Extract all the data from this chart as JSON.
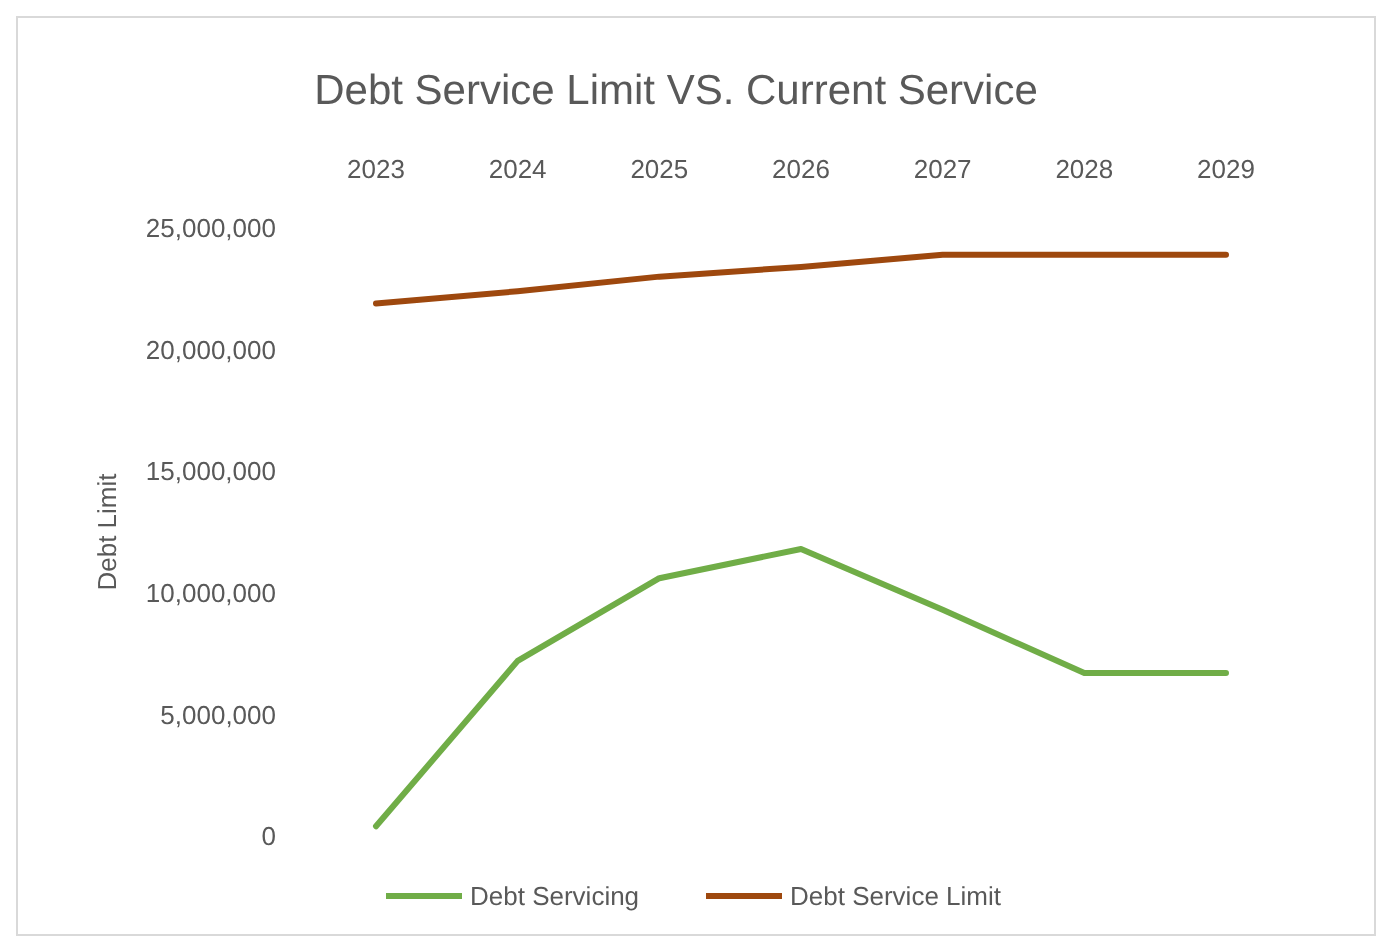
{
  "chart_data": {
    "type": "line",
    "title": "Debt Service Limit VS. Current Service",
    "ylabel": "Debt Limit",
    "categories": [
      "2023",
      "2024",
      "2025",
      "2026",
      "2027",
      "2028",
      "2029"
    ],
    "series": [
      {
        "name": "Debt Servicing",
        "color": "#70ad47",
        "values": [
          400000,
          7200000,
          10600000,
          11800000,
          9300000,
          6700000,
          6700000
        ]
      },
      {
        "name": "Debt Service Limit",
        "color": "#9e480e",
        "values": [
          21900000,
          22400000,
          23000000,
          23400000,
          23900000,
          23900000,
          23900000
        ]
      }
    ],
    "ylim": [
      0,
      25000000
    ],
    "yticks": [
      {
        "value": 0,
        "label": "0"
      },
      {
        "value": 5000000,
        "label": "5,000,000"
      },
      {
        "value": 10000000,
        "label": "10,000,000"
      },
      {
        "value": 15000000,
        "label": "15,000,000"
      },
      {
        "value": 20000000,
        "label": "20,000,000"
      },
      {
        "value": 25000000,
        "label": "25,000,000"
      }
    ],
    "grid": false,
    "legend": "bottom",
    "marker": "none",
    "line_style": "solid"
  }
}
